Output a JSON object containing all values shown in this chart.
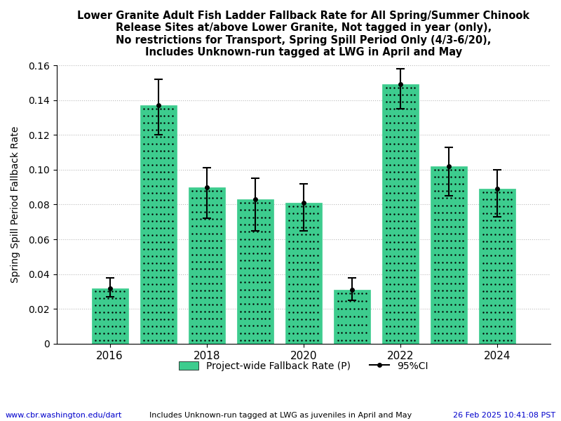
{
  "title": "Lower Granite Adult Fish Ladder Fallback Rate for All Spring/Summer Chinook\nRelease Sites at/above Lower Granite, Not tagged in year (only),\nNo restrictions for Transport, Spring Spill Period Only (4/3-6/20),\nIncludes Unknown-run tagged at LWG in April and May",
  "ylabel": "Spring Spill Period Fallback Rate",
  "xlabel": "",
  "years": [
    2016,
    2017,
    2018,
    2019,
    2020,
    2021,
    2022,
    2023,
    2024
  ],
  "bar_values": [
    0.032,
    0.137,
    0.09,
    0.083,
    0.081,
    0.031,
    0.149,
    0.102,
    0.089
  ],
  "ci_centers": [
    0.032,
    0.137,
    0.09,
    0.083,
    0.081,
    0.031,
    0.149,
    0.102,
    0.089
  ],
  "ci_lower": [
    0.027,
    0.12,
    0.072,
    0.065,
    0.065,
    0.025,
    0.135,
    0.085,
    0.073
  ],
  "ci_upper": [
    0.038,
    0.152,
    0.101,
    0.095,
    0.092,
    0.038,
    0.158,
    0.113,
    0.1
  ],
  "bar_color": "#3dcc8e",
  "bar_edgecolor": "#3dcc8e",
  "bar_width": 0.75,
  "xlim": [
    2014.9,
    2025.1
  ],
  "ylim": [
    0,
    0.16
  ],
  "yticks": [
    0,
    0.02,
    0.04,
    0.06,
    0.08,
    0.1,
    0.12,
    0.14,
    0.16
  ],
  "xtick_positions": [
    2016,
    2018,
    2020,
    2022,
    2024
  ],
  "grid_color": "#bbbbbb",
  "legend_label_bar": "Project-wide Fallback Rate (P)",
  "legend_label_ci": "95%CI",
  "footer_left": "www.cbr.washington.edu/dart",
  "footer_center": "Includes Unknown-run tagged at LWG as juveniles in April and May",
  "footer_right": "26 Feb 2025 10:41:08 PST",
  "footer_color_left": "#0000cc",
  "footer_color_center": "#000000",
  "footer_color_right": "#0000cc",
  "title_fontsize": 10.5,
  "axis_fontsize": 10,
  "tick_fontsize": 11,
  "footer_fontsize": 8
}
